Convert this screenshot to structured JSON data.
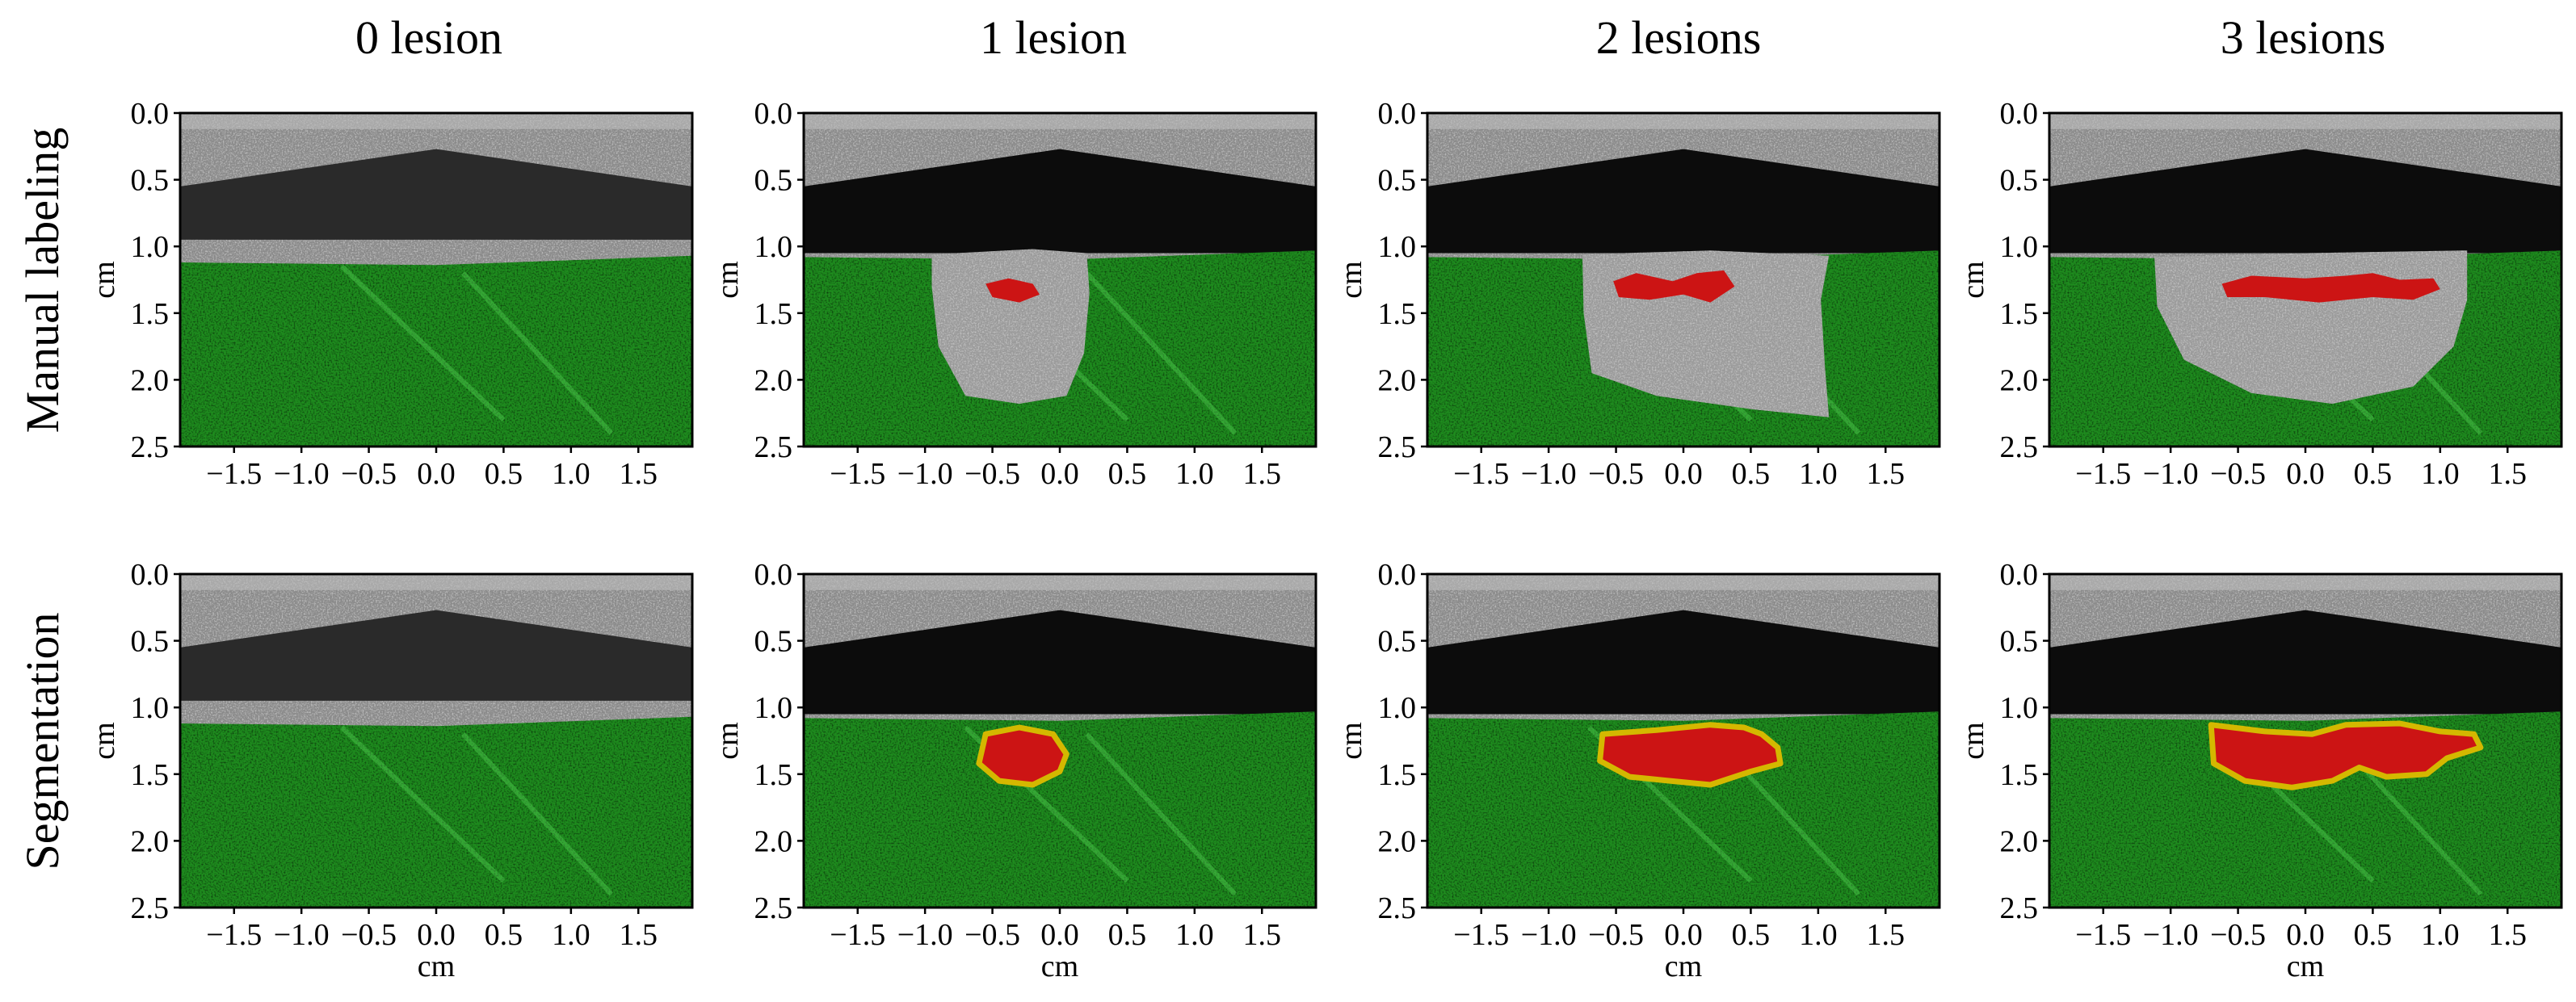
{
  "columns": [
    {
      "title": "0 lesion",
      "lesions_manual": 0
    },
    {
      "title": "1 lesion",
      "lesions_manual": 1
    },
    {
      "title": "2 lesions",
      "lesions_manual": 2
    },
    {
      "title": "3 lesions",
      "lesions_manual": 3
    }
  ],
  "rows": [
    {
      "label": "Manual labeling"
    },
    {
      "label": "Segmentation"
    }
  ],
  "axes": {
    "ylabel": "cm",
    "xlabel": "cm",
    "xlim": [
      -1.9,
      1.9
    ],
    "ylim": [
      0.0,
      2.5
    ],
    "xticks": [
      "-1.5",
      "-1.0",
      "-0.5",
      "0.0",
      "0.5",
      "1.0",
      "1.5"
    ],
    "yticks": [
      "0.0",
      "0.5",
      "1.0",
      "1.5",
      "2.0",
      "2.5"
    ]
  },
  "colors": {
    "tissue_green": "#1e8c1e",
    "lesion_red": "#cc1414",
    "outline_yellow": "#d4b800",
    "ultrasound_gray": "#8a8a8a",
    "gel_dark": "#0c0c0c"
  }
}
